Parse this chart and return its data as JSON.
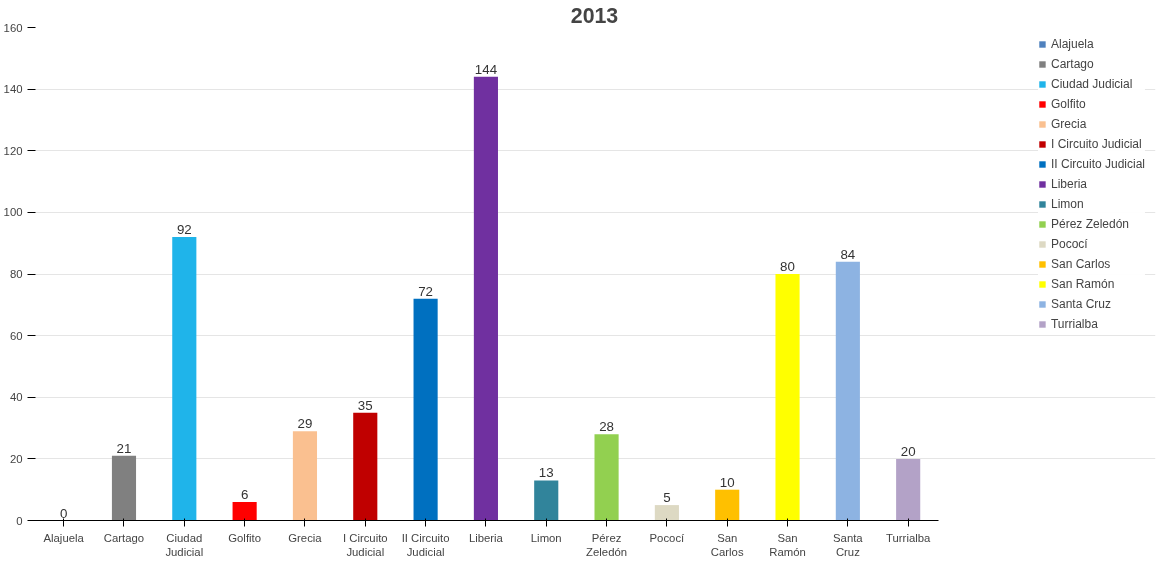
{
  "chart_data": {
    "type": "bar",
    "title": "2013",
    "categories": [
      "Alajuela",
      "Cartago",
      "Ciudad Judicial",
      "Golfito",
      "Grecia",
      "I Circuito Judicial",
      "II Circuito Judicial",
      "Liberia",
      "Limon",
      "Pérez Zeledón",
      "Pococí",
      "San Carlos",
      "San Ramón",
      "Santa Cruz",
      "Turrialba"
    ],
    "series": [
      {
        "name": "Alajuela",
        "color": "#4f81bd",
        "values": [
          0,
          null,
          null,
          null,
          null,
          null,
          null,
          null,
          null,
          null,
          null,
          null,
          null,
          null,
          null
        ]
      },
      {
        "name": "Cartago",
        "color": "#808080",
        "values": [
          null,
          21,
          null,
          null,
          null,
          null,
          null,
          null,
          null,
          null,
          null,
          null,
          null,
          null,
          null
        ]
      },
      {
        "name": "Ciudad Judicial",
        "color": "#1fb4ea",
        "values": [
          null,
          null,
          92,
          null,
          null,
          null,
          null,
          null,
          null,
          null,
          null,
          null,
          null,
          null,
          null
        ]
      },
      {
        "name": "Golfito",
        "color": "#ff0000",
        "values": [
          null,
          null,
          null,
          6,
          null,
          null,
          null,
          null,
          null,
          null,
          null,
          null,
          null,
          null,
          null
        ]
      },
      {
        "name": "Grecia",
        "color": "#fac090",
        "values": [
          null,
          null,
          null,
          null,
          29,
          null,
          null,
          null,
          null,
          null,
          null,
          null,
          null,
          null,
          null
        ]
      },
      {
        "name": "I Circuito Judicial",
        "color": "#c00000",
        "values": [
          null,
          null,
          null,
          null,
          null,
          35,
          null,
          null,
          null,
          null,
          null,
          null,
          null,
          null,
          null
        ]
      },
      {
        "name": "II Circuito Judicial",
        "color": "#0070c0",
        "values": [
          null,
          null,
          null,
          null,
          null,
          null,
          72,
          null,
          null,
          null,
          null,
          null,
          null,
          null,
          null
        ]
      },
      {
        "name": "Liberia",
        "color": "#7030a0",
        "values": [
          null,
          null,
          null,
          null,
          null,
          null,
          null,
          144,
          null,
          null,
          null,
          null,
          null,
          null,
          null
        ]
      },
      {
        "name": "Limon",
        "color": "#31849b",
        "values": [
          null,
          null,
          null,
          null,
          null,
          null,
          null,
          null,
          13,
          null,
          null,
          null,
          null,
          null,
          null
        ]
      },
      {
        "name": "Pérez Zeledón",
        "color": "#92d050",
        "values": [
          null,
          null,
          null,
          null,
          null,
          null,
          null,
          null,
          null,
          28,
          null,
          null,
          null,
          null,
          null
        ]
      },
      {
        "name": "Pococí",
        "color": "#ddd9c3",
        "values": [
          null,
          null,
          null,
          null,
          null,
          null,
          null,
          null,
          null,
          null,
          5,
          null,
          null,
          null,
          null
        ]
      },
      {
        "name": "San Carlos",
        "color": "#ffc000",
        "values": [
          null,
          null,
          null,
          null,
          null,
          null,
          null,
          null,
          null,
          null,
          null,
          10,
          null,
          null,
          null
        ]
      },
      {
        "name": "San Ramón",
        "color": "#ffff00",
        "values": [
          null,
          null,
          null,
          null,
          null,
          null,
          null,
          null,
          null,
          null,
          null,
          null,
          80,
          null,
          null
        ]
      },
      {
        "name": "Santa Cruz",
        "color": "#8db3e2",
        "values": [
          null,
          null,
          null,
          null,
          null,
          null,
          null,
          null,
          null,
          null,
          null,
          null,
          null,
          84,
          null
        ]
      },
      {
        "name": "Turrialba",
        "color": "#b3a2c7",
        "values": [
          null,
          null,
          null,
          null,
          null,
          null,
          null,
          null,
          null,
          null,
          null,
          null,
          null,
          null,
          20
        ]
      }
    ],
    "ylim": [
      0,
      160
    ],
    "yticks": [
      0,
      20,
      40,
      60,
      80,
      100,
      120,
      140,
      160
    ],
    "grid": "y",
    "legend": "right",
    "data_labels": true
  }
}
